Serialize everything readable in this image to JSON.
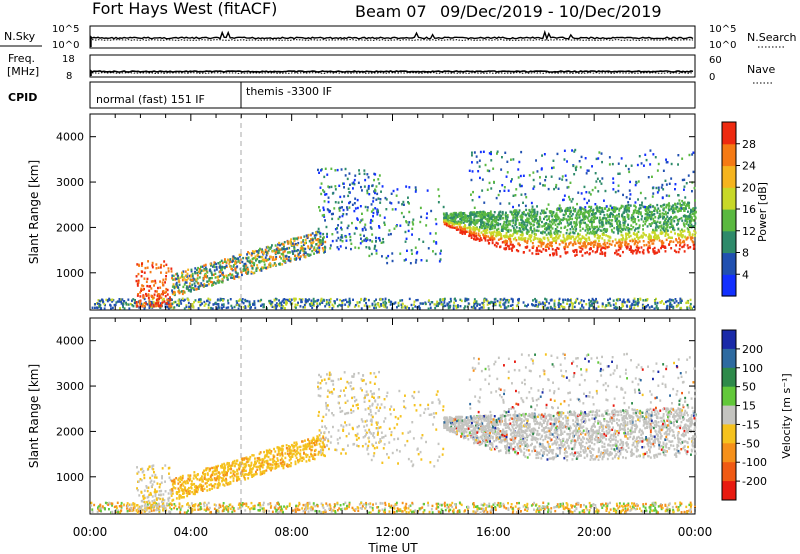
{
  "header": {
    "station": "Fort Hays West (fitACF)",
    "beam": "Beam 07",
    "dates": "09/Dec/2019 - 10/Dec/2019"
  },
  "noise_panel": {
    "left_label": "N.Sky",
    "left_ticks": [
      "10^5",
      "10^0"
    ],
    "right_ticks": [
      "10^5",
      "10^0"
    ],
    "right_label": "N.Search"
  },
  "freq_panel": {
    "left_label_1": "Freq.",
    "left_label_2": "[MHz]",
    "left_ticks": [
      "18",
      "8"
    ],
    "right_ticks": [
      "60",
      "0"
    ],
    "right_label": "Nave"
  },
  "cpid_panel": {
    "label": "CPID",
    "segments": [
      {
        "text": "normal (fast) 151 IF",
        "start_hour": 0
      },
      {
        "text": "themis -3300 IF",
        "start_hour": 6
      }
    ]
  },
  "chart_data": [
    {
      "type": "heatmap",
      "name": "power",
      "ylabel": "Slant Range [km]",
      "xlabel": "Time UT",
      "xlim_hours": [
        0,
        24
      ],
      "ylim": [
        180,
        4500
      ],
      "yticks": [
        1000,
        2000,
        3000,
        4000
      ],
      "xtick_labels": [
        "00:00",
        "04:00",
        "08:00",
        "12:00",
        "16:00",
        "20:00",
        "00:00"
      ],
      "colorbar": {
        "label": "Power [dB]",
        "ticks": [
          "4",
          "8",
          "12",
          "16",
          "20",
          "24",
          "28"
        ],
        "colors": [
          "#1230ff",
          "#2050b0",
          "#2e8a6a",
          "#5ab840",
          "#c8d828",
          "#f5b41e",
          "#f57a14",
          "#ee2a10"
        ]
      }
    },
    {
      "type": "heatmap",
      "name": "velocity",
      "ylabel": "Slant Range [km]",
      "xlabel": "Time UT",
      "xlim_hours": [
        0,
        24
      ],
      "ylim": [
        180,
        4500
      ],
      "yticks": [
        1000,
        2000,
        3000,
        4000
      ],
      "xtick_labels": [
        "00:00",
        "04:00",
        "08:00",
        "12:00",
        "16:00",
        "20:00",
        "00:00"
      ],
      "colorbar": {
        "label": "Velocity [m s⁻¹]",
        "ticks": [
          "200",
          "100",
          "50",
          "15",
          "-15",
          "-50",
          "-100",
          "-200"
        ],
        "colors": [
          "#1a2aa8",
          "#2e6aa0",
          "#2e8a4a",
          "#62c83a",
          "#c4c4c0",
          "#f5c21e",
          "#f5901a",
          "#f05a14",
          "#e81a10"
        ]
      }
    }
  ],
  "x_axis": {
    "title": "Time UT",
    "labels": [
      "00:00",
      "04:00",
      "08:00",
      "12:00",
      "16:00",
      "20:00",
      "00:00"
    ]
  }
}
